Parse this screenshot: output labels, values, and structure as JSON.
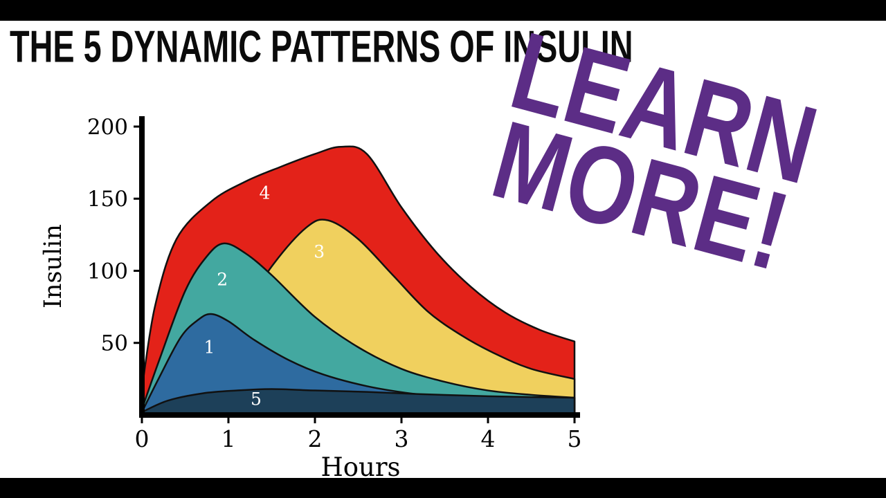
{
  "page": {
    "title": "THE 5 DYNAMIC PATTERNS OF INSULIN",
    "overlay": {
      "line1": "LEARN",
      "line2": "MORE!",
      "color": "#5c2d86"
    },
    "letterbox_color": "#000000",
    "background": "#ffffff"
  },
  "chart_data": {
    "type": "area",
    "title": "",
    "xlabel": "Hours",
    "ylabel": "Insulin",
    "xlim": [
      0,
      5
    ],
    "ylim": [
      0,
      200
    ],
    "xticks": [
      "0",
      "1",
      "2",
      "3",
      "4",
      "5"
    ],
    "yticks": [
      "50",
      "100",
      "150",
      "200"
    ],
    "grid": false,
    "legend": false,
    "outline_color": "#111111",
    "axis_color": "#000000",
    "label_color": "#ffffff",
    "series": [
      {
        "name": "4",
        "color": "#e32219",
        "label_xy": [
          1.42,
          150
        ],
        "points": [
          [
            0,
            18
          ],
          [
            0.15,
            75
          ],
          [
            0.4,
            122
          ],
          [
            0.8,
            148
          ],
          [
            1.2,
            162
          ],
          [
            1.6,
            172
          ],
          [
            2.0,
            181
          ],
          [
            2.3,
            186
          ],
          [
            2.6,
            181
          ],
          [
            3.0,
            144
          ],
          [
            3.4,
            113
          ],
          [
            3.8,
            89
          ],
          [
            4.2,
            71
          ],
          [
            4.6,
            59
          ],
          [
            5,
            51
          ]
        ]
      },
      {
        "name": "3",
        "color": "#f0d05e",
        "label_xy": [
          2.05,
          109
        ],
        "points": [
          [
            0,
            1
          ],
          [
            0.5,
            22
          ],
          [
            1.0,
            58
          ],
          [
            1.5,
            103
          ],
          [
            1.9,
            130
          ],
          [
            2.15,
            135
          ],
          [
            2.5,
            122
          ],
          [
            2.9,
            97
          ],
          [
            3.3,
            72
          ],
          [
            3.7,
            55
          ],
          [
            4.1,
            42
          ],
          [
            4.5,
            32
          ],
          [
            5,
            25
          ]
        ]
      },
      {
        "name": "2",
        "color": "#43a8a0",
        "label_xy": [
          0.93,
          90
        ],
        "points": [
          [
            0,
            4
          ],
          [
            0.2,
            38
          ],
          [
            0.5,
            86
          ],
          [
            0.75,
            110
          ],
          [
            0.95,
            119
          ],
          [
            1.2,
            112
          ],
          [
            1.5,
            97
          ],
          [
            2.0,
            68
          ],
          [
            2.5,
            47
          ],
          [
            3.0,
            32
          ],
          [
            3.5,
            23
          ],
          [
            4.0,
            17
          ],
          [
            4.5,
            14
          ],
          [
            5,
            12
          ]
        ]
      },
      {
        "name": "1",
        "color": "#2e6ba0",
        "label_xy": [
          0.78,
          43
        ],
        "points": [
          [
            0,
            2
          ],
          [
            0.2,
            26
          ],
          [
            0.45,
            54
          ],
          [
            0.65,
            66
          ],
          [
            0.8,
            70
          ],
          [
            1.0,
            65
          ],
          [
            1.3,
            52
          ],
          [
            1.7,
            38
          ],
          [
            2.1,
            28
          ],
          [
            2.6,
            20
          ],
          [
            3.1,
            15
          ],
          [
            3.6,
            12
          ],
          [
            4.3,
            10
          ],
          [
            5,
            9
          ]
        ]
      },
      {
        "name": "5",
        "color": "#1d4059",
        "label_xy": [
          1.32,
          7
        ],
        "points": [
          [
            0,
            2
          ],
          [
            0.3,
            10
          ],
          [
            0.7,
            15
          ],
          [
            1.1,
            17
          ],
          [
            1.5,
            18
          ],
          [
            2.0,
            17
          ],
          [
            2.6,
            16
          ],
          [
            3.2,
            14.5
          ],
          [
            4.0,
            13
          ],
          [
            5,
            12
          ]
        ]
      }
    ]
  }
}
